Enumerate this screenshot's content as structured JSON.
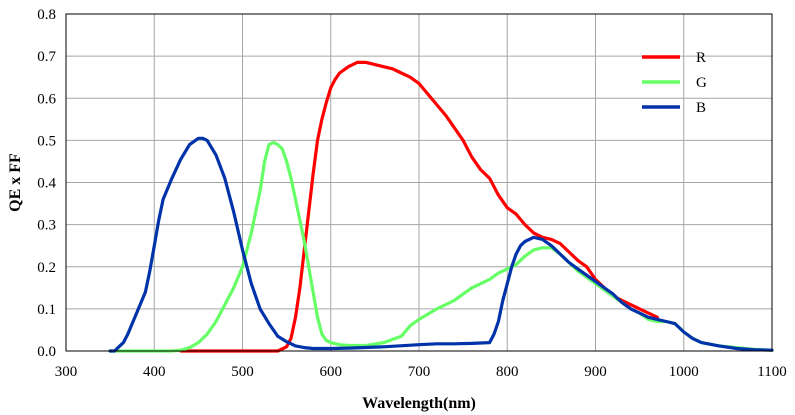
{
  "chart_data": {
    "type": "line",
    "title": "",
    "xlabel": "Wavelength(nm)",
    "ylabel": "QE x FF",
    "xlim": [
      300,
      1100
    ],
    "ylim": [
      0,
      0.8
    ],
    "xticks": [
      300,
      400,
      500,
      600,
      700,
      800,
      900,
      1000,
      1100
    ],
    "yticks": [
      0.0,
      0.1,
      0.2,
      0.3,
      0.4,
      0.5,
      0.6,
      0.7,
      0.8
    ],
    "xtick_labels": [
      "300",
      "400",
      "500",
      "600",
      "700",
      "800",
      "900",
      "1000",
      "1100"
    ],
    "ytick_labels": [
      "0.0",
      "0.1",
      "0.2",
      "0.3",
      "0.4",
      "0.5",
      "0.6",
      "0.7",
      "0.8"
    ],
    "grid": true,
    "legend_position": "top-right",
    "series": [
      {
        "name": "R",
        "color": "#ff0000",
        "points": [
          [
            430,
            0
          ],
          [
            500,
            0
          ],
          [
            540,
            0
          ],
          [
            550,
            0.01
          ],
          [
            555,
            0.03
          ],
          [
            560,
            0.08
          ],
          [
            565,
            0.15
          ],
          [
            570,
            0.24
          ],
          [
            575,
            0.33
          ],
          [
            580,
            0.42
          ],
          [
            585,
            0.5
          ],
          [
            590,
            0.55
          ],
          [
            595,
            0.59
          ],
          [
            600,
            0.625
          ],
          [
            605,
            0.645
          ],
          [
            610,
            0.66
          ],
          [
            620,
            0.675
          ],
          [
            630,
            0.685
          ],
          [
            640,
            0.685
          ],
          [
            650,
            0.68
          ],
          [
            660,
            0.675
          ],
          [
            670,
            0.67
          ],
          [
            680,
            0.66
          ],
          [
            690,
            0.65
          ],
          [
            700,
            0.635
          ],
          [
            710,
            0.61
          ],
          [
            720,
            0.585
          ],
          [
            730,
            0.56
          ],
          [
            740,
            0.53
          ],
          [
            750,
            0.5
          ],
          [
            760,
            0.46
          ],
          [
            770,
            0.43
          ],
          [
            780,
            0.41
          ],
          [
            790,
            0.37
          ],
          [
            800,
            0.34
          ],
          [
            810,
            0.325
          ],
          [
            820,
            0.3
          ],
          [
            830,
            0.28
          ],
          [
            840,
            0.27
          ],
          [
            850,
            0.265
          ],
          [
            860,
            0.255
          ],
          [
            870,
            0.235
          ],
          [
            880,
            0.215
          ],
          [
            890,
            0.2
          ],
          [
            900,
            0.17
          ],
          [
            910,
            0.15
          ],
          [
            920,
            0.13
          ],
          [
            930,
            0.12
          ],
          [
            940,
            0.11
          ],
          [
            950,
            0.1
          ],
          [
            960,
            0.09
          ],
          [
            970,
            0.08
          ]
        ]
      },
      {
        "name": "G",
        "color": "#66ff66",
        "points": [
          [
            350,
            0
          ],
          [
            400,
            0
          ],
          [
            420,
            0
          ],
          [
            430,
            0.002
          ],
          [
            440,
            0.008
          ],
          [
            450,
            0.02
          ],
          [
            460,
            0.04
          ],
          [
            470,
            0.07
          ],
          [
            480,
            0.11
          ],
          [
            490,
            0.15
          ],
          [
            500,
            0.2
          ],
          [
            510,
            0.28
          ],
          [
            520,
            0.38
          ],
          [
            525,
            0.45
          ],
          [
            530,
            0.49
          ],
          [
            535,
            0.495
          ],
          [
            540,
            0.49
          ],
          [
            545,
            0.48
          ],
          [
            550,
            0.45
          ],
          [
            555,
            0.41
          ],
          [
            560,
            0.36
          ],
          [
            565,
            0.31
          ],
          [
            570,
            0.26
          ],
          [
            575,
            0.2
          ],
          [
            580,
            0.14
          ],
          [
            585,
            0.08
          ],
          [
            590,
            0.04
          ],
          [
            595,
            0.025
          ],
          [
            600,
            0.02
          ],
          [
            610,
            0.015
          ],
          [
            620,
            0.013
          ],
          [
            640,
            0.013
          ],
          [
            660,
            0.02
          ],
          [
            680,
            0.035
          ],
          [
            690,
            0.06
          ],
          [
            700,
            0.075
          ],
          [
            720,
            0.1
          ],
          [
            740,
            0.12
          ],
          [
            750,
            0.135
          ],
          [
            760,
            0.15
          ],
          [
            780,
            0.17
          ],
          [
            790,
            0.185
          ],
          [
            800,
            0.195
          ],
          [
            810,
            0.205
          ],
          [
            820,
            0.225
          ],
          [
            830,
            0.24
          ],
          [
            840,
            0.245
          ],
          [
            850,
            0.245
          ],
          [
            860,
            0.23
          ],
          [
            870,
            0.21
          ],
          [
            880,
            0.19
          ],
          [
            890,
            0.175
          ],
          [
            900,
            0.16
          ],
          [
            910,
            0.145
          ],
          [
            920,
            0.13
          ],
          [
            930,
            0.115
          ],
          [
            940,
            0.1
          ],
          [
            950,
            0.09
          ],
          [
            960,
            0.075
          ],
          [
            970,
            0.07
          ],
          [
            980,
            0.07
          ],
          [
            990,
            0.065
          ],
          [
            1000,
            0.045
          ],
          [
            1010,
            0.03
          ],
          [
            1020,
            0.02
          ],
          [
            1040,
            0.012
          ],
          [
            1060,
            0.008
          ],
          [
            1080,
            0.004
          ],
          [
            1100,
            0.002
          ]
        ]
      },
      {
        "name": "B",
        "color": "#0033aa",
        "points": [
          [
            350,
            0
          ],
          [
            355,
            0
          ],
          [
            360,
            0.01
          ],
          [
            365,
            0.02
          ],
          [
            370,
            0.04
          ],
          [
            380,
            0.09
          ],
          [
            390,
            0.14
          ],
          [
            395,
            0.19
          ],
          [
            400,
            0.25
          ],
          [
            405,
            0.31
          ],
          [
            410,
            0.36
          ],
          [
            420,
            0.41
          ],
          [
            430,
            0.455
          ],
          [
            440,
            0.49
          ],
          [
            450,
            0.505
          ],
          [
            455,
            0.505
          ],
          [
            460,
            0.5
          ],
          [
            470,
            0.465
          ],
          [
            480,
            0.41
          ],
          [
            490,
            0.33
          ],
          [
            500,
            0.24
          ],
          [
            510,
            0.16
          ],
          [
            520,
            0.1
          ],
          [
            530,
            0.065
          ],
          [
            540,
            0.035
          ],
          [
            550,
            0.022
          ],
          [
            560,
            0.012
          ],
          [
            570,
            0.008
          ],
          [
            580,
            0.006
          ],
          [
            600,
            0.006
          ],
          [
            620,
            0.007
          ],
          [
            660,
            0.01
          ],
          [
            700,
            0.015
          ],
          [
            720,
            0.017
          ],
          [
            740,
            0.017
          ],
          [
            760,
            0.018
          ],
          [
            780,
            0.02
          ],
          [
            785,
            0.04
          ],
          [
            790,
            0.07
          ],
          [
            795,
            0.12
          ],
          [
            800,
            0.16
          ],
          [
            805,
            0.2
          ],
          [
            810,
            0.23
          ],
          [
            815,
            0.25
          ],
          [
            820,
            0.26
          ],
          [
            830,
            0.27
          ],
          [
            840,
            0.265
          ],
          [
            850,
            0.25
          ],
          [
            860,
            0.23
          ],
          [
            870,
            0.21
          ],
          [
            880,
            0.195
          ],
          [
            890,
            0.18
          ],
          [
            900,
            0.165
          ],
          [
            910,
            0.15
          ],
          [
            920,
            0.135
          ],
          [
            930,
            0.115
          ],
          [
            940,
            0.1
          ],
          [
            950,
            0.09
          ],
          [
            960,
            0.08
          ],
          [
            970,
            0.075
          ],
          [
            980,
            0.07
          ],
          [
            990,
            0.065
          ],
          [
            1000,
            0.045
          ],
          [
            1010,
            0.03
          ],
          [
            1020,
            0.02
          ],
          [
            1040,
            0.012
          ],
          [
            1060,
            0.006
          ],
          [
            1080,
            0.003
          ],
          [
            1100,
            0.002
          ]
        ]
      }
    ]
  }
}
